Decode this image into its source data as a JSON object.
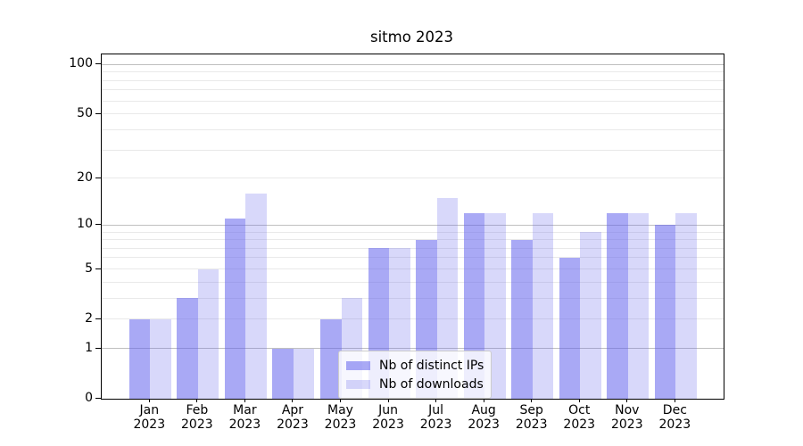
{
  "chart_data": {
    "type": "bar",
    "title": "sitmo 2023",
    "categories": [
      "Jan",
      "Feb",
      "Mar",
      "Apr",
      "May",
      "Jun",
      "Jul",
      "Aug",
      "Sep",
      "Oct",
      "Nov",
      "Dec"
    ],
    "category_year": "2023",
    "series": [
      {
        "name": "Nb of distinct IPs",
        "values": [
          2,
          3,
          11,
          1,
          2,
          7,
          8,
          12,
          8,
          6,
          12,
          10
        ]
      },
      {
        "name": "Nb of downloads",
        "values": [
          2,
          5,
          16,
          1,
          3,
          7,
          15,
          12,
          12,
          9,
          12,
          12
        ]
      }
    ],
    "y_scale": "log1p",
    "y_ticks": [
      0,
      1,
      2,
      5,
      10,
      20,
      50,
      100
    ],
    "y_max": 115,
    "grid": {
      "major": [
        1,
        10,
        100
      ],
      "minor": [
        2,
        3,
        4,
        5,
        6,
        7,
        8,
        9,
        20,
        30,
        40,
        50,
        60,
        70,
        80,
        90
      ]
    },
    "legend": {
      "entries": [
        "Nb of distinct IPs",
        "Nb of downloads"
      ],
      "position": "lower center inside"
    },
    "colors": {
      "bar_base": "#6363ed",
      "series_alpha": [
        0.55,
        0.25
      ],
      "major_grid": "#bfbfbf",
      "minor_grid": "#e9e9e9",
      "axis": "#000000",
      "text": "#000000",
      "legend_border": "#cccccc",
      "background": "#ffffff"
    }
  }
}
